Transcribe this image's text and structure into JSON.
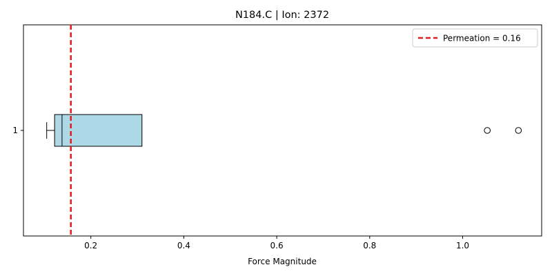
{
  "chart_data": {
    "type": "boxplot",
    "title": "N184.C | Ion: 2372",
    "xlabel": "Force Magnitude",
    "ylabel": "",
    "xlim": [
      0.055,
      1.17
    ],
    "xticks": [
      0.2,
      0.4,
      0.6,
      0.8,
      1.0
    ],
    "xtick_labels": [
      "0.2",
      "0.4",
      "0.6",
      "0.8",
      "1.0"
    ],
    "ytick_labels": [
      "1"
    ],
    "orientation": "horizontal",
    "box": {
      "category": "1",
      "whisker_low": 0.105,
      "q1": 0.122,
      "median": 0.138,
      "q3": 0.31,
      "whisker_high": 0.31,
      "outliers": [
        1.053,
        1.12
      ],
      "fill_color": "#add8e6",
      "edge_color": "#000000"
    },
    "reference_line": {
      "value": 0.157,
      "color": "#e31a1c",
      "style": "dashed",
      "label": "Permeation = 0.16"
    },
    "legend": {
      "placement": "top-right",
      "entries": [
        "Permeation = 0.16"
      ]
    },
    "grid": false
  }
}
